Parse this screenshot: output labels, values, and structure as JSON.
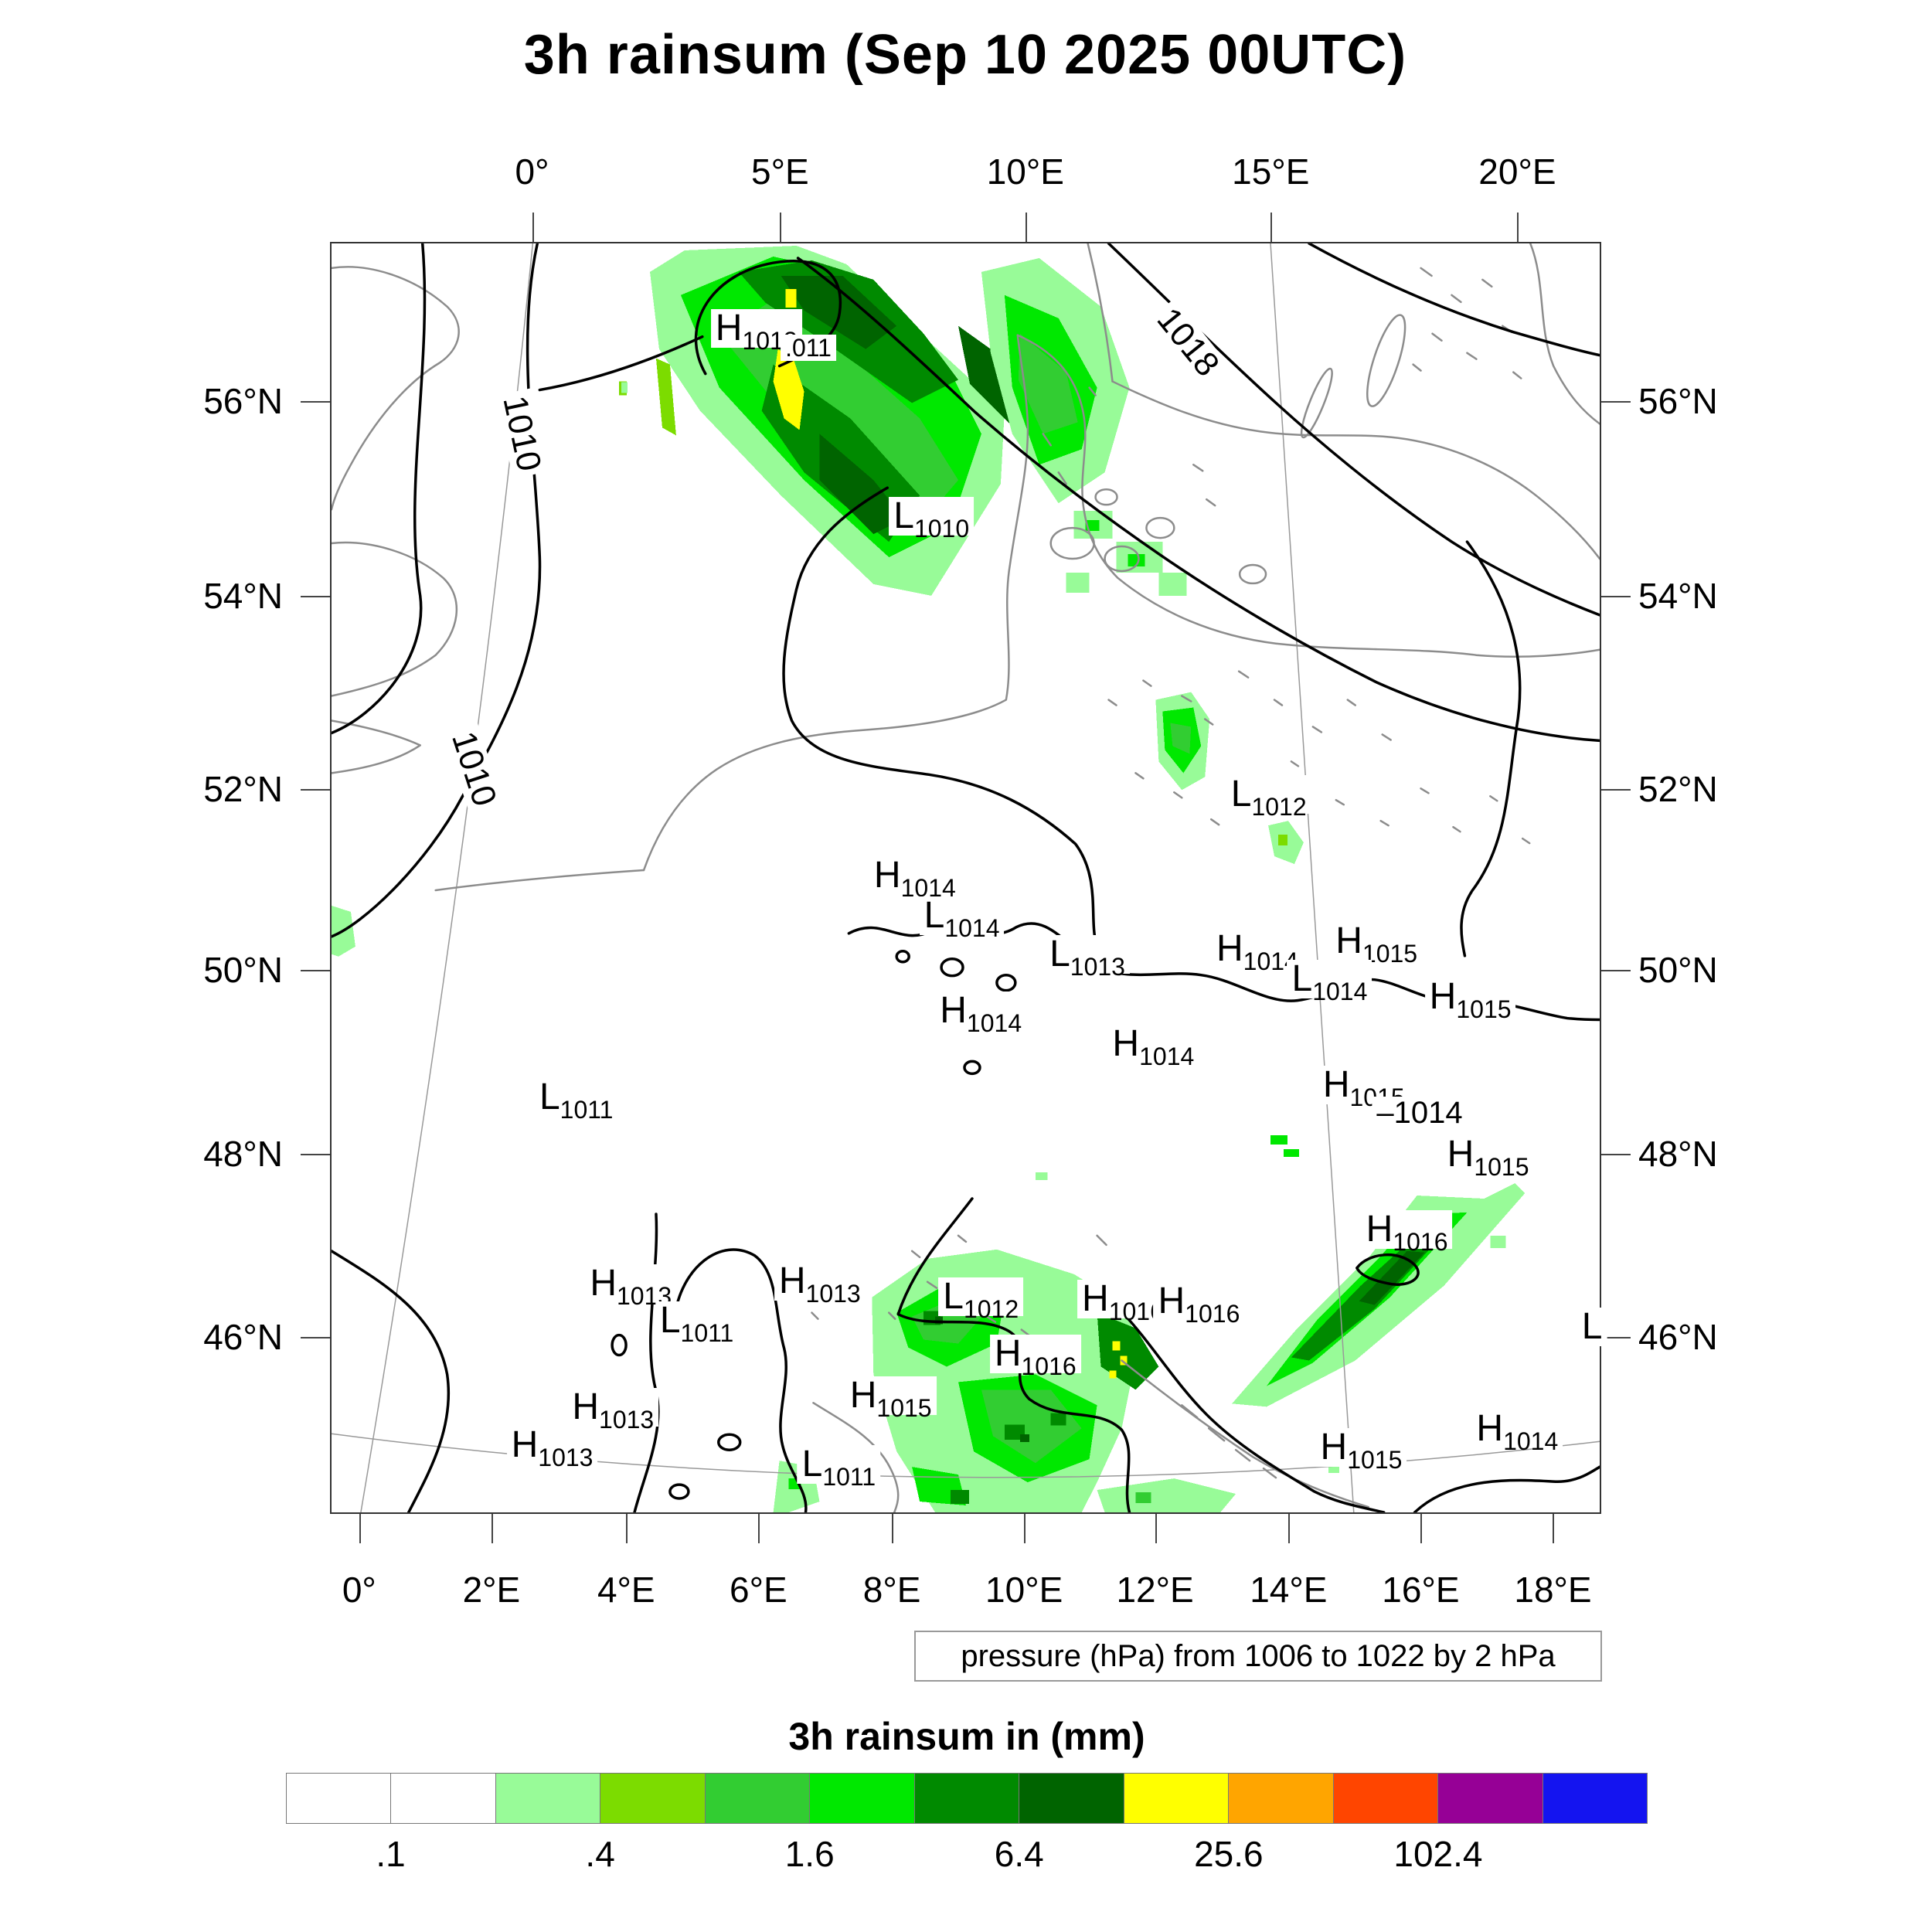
{
  "chart_data": {
    "type": "heatmap",
    "title": "3h rainsum (Sep 10 2025 00UTC)",
    "field": "3h rainsum",
    "units": "mm",
    "valid_time": "Sep 10 2025 00UTC",
    "caption": "pressure (hPa) from 1006 to 1022 by 2 hPa",
    "pressure_contours_hPa": {
      "from": 1006,
      "to": 1022,
      "by": 2
    },
    "colorbar": {
      "title": "3h rainsum in (mm)",
      "scale": "logarithmic (factor 2 per cell boundary)",
      "colors": [
        "#FFFFFF",
        "#FFFFFF",
        "#98FB98",
        "#7CDC00",
        "#32CD32",
        "#00E800",
        "#008A00",
        "#006400",
        "#FFFF00",
        "#FFA500",
        "#FF4500",
        "#960096",
        "#1414F0"
      ],
      "boundary_labels": [
        {
          "text": ".1",
          "boundary": 1
        },
        {
          "text": ".4",
          "boundary": 3
        },
        {
          "text": "1.6",
          "boundary": 5
        },
        {
          "text": "6.4",
          "boundary": 7
        },
        {
          "text": "25.6",
          "boundary": 9
        },
        {
          "text": "102.4",
          "boundary": 11
        }
      ]
    },
    "axes": {
      "top": [
        {
          "label": "0°",
          "pct": 15.9
        },
        {
          "label": "5°E",
          "pct": 35.4
        },
        {
          "label": "10°E",
          "pct": 54.7
        },
        {
          "label": "15°E",
          "pct": 74.0
        },
        {
          "label": "20°E",
          "pct": 93.4
        }
      ],
      "bottom": [
        {
          "label": "0°",
          "pct": 2.3
        },
        {
          "label": "2°E",
          "pct": 12.7
        },
        {
          "label": "4°E",
          "pct": 23.3
        },
        {
          "label": "6°E",
          "pct": 33.7
        },
        {
          "label": "8°E",
          "pct": 44.2
        },
        {
          "label": "10°E",
          "pct": 54.6
        },
        {
          "label": "12°E",
          "pct": 64.9
        },
        {
          "label": "14°E",
          "pct": 75.4
        },
        {
          "label": "16°E",
          "pct": 85.8
        },
        {
          "label": "18°E",
          "pct": 96.2
        }
      ],
      "left": [
        {
          "label": "56°N",
          "pct": 12.5
        },
        {
          "label": "54°N",
          "pct": 27.8
        },
        {
          "label": "52°N",
          "pct": 43.0
        },
        {
          "label": "50°N",
          "pct": 57.2
        },
        {
          "label": "48°N",
          "pct": 71.7
        },
        {
          "label": "46°N",
          "pct": 86.1
        }
      ],
      "right": [
        {
          "label": "56°N",
          "pct": 12.5
        },
        {
          "label": "54°N",
          "pct": 27.8
        },
        {
          "label": "52°N",
          "pct": 43.0
        },
        {
          "label": "50°N",
          "pct": 57.2
        },
        {
          "label": "48°N",
          "pct": 71.7
        },
        {
          "label": "46°N",
          "pct": 86.1
        }
      ]
    },
    "pressure_labels": [
      {
        "k": "H",
        "v": "1013",
        "x": 33.5,
        "y": 6.7
      },
      {
        "k": "T",
        "v": ".011",
        "x": 37.6,
        "y": 8.2,
        "fs": 32
      },
      {
        "k": "L",
        "v": "1010",
        "x": 47.3,
        "y": 21.5
      },
      {
        "k": "T",
        "v": "1018",
        "x": 67.5,
        "y": 7.8,
        "r": 51,
        "fs": 44
      },
      {
        "k": "T",
        "v": "1010",
        "x": 15.0,
        "y": 15.0,
        "r": 78,
        "fs": 44
      },
      {
        "k": "T",
        "v": "1010",
        "x": 11.2,
        "y": 41.4,
        "r": 72,
        "fs": 44
      },
      {
        "k": "L",
        "v": "1012",
        "x": 73.9,
        "y": 43.4
      },
      {
        "k": "H",
        "v": "1014",
        "x": 46.0,
        "y": 49.8
      },
      {
        "k": "L",
        "v": "1014",
        "x": 49.7,
        "y": 53.0
      },
      {
        "k": "L",
        "v": "1013",
        "x": 59.6,
        "y": 56.0
      },
      {
        "k": "H",
        "v": "1014",
        "x": 73.0,
        "y": 55.6
      },
      {
        "k": "H",
        "v": "1015",
        "x": 82.4,
        "y": 55.0
      },
      {
        "k": "L",
        "v": "1014",
        "x": 78.7,
        "y": 58.0
      },
      {
        "k": "H",
        "v": "1015",
        "x": 89.8,
        "y": 59.4
      },
      {
        "k": "H",
        "v": "1014",
        "x": 51.2,
        "y": 60.5
      },
      {
        "k": "H",
        "v": "1014",
        "x": 64.8,
        "y": 63.1
      },
      {
        "k": "L",
        "v": "1011",
        "x": 19.3,
        "y": 67.3
      },
      {
        "k": "H",
        "v": "1015",
        "x": 81.4,
        "y": 66.3
      },
      {
        "k": "T",
        "v": "‒1014",
        "x": 85.8,
        "y": 68.5,
        "fs": 40
      },
      {
        "k": "H",
        "v": "1015",
        "x": 91.2,
        "y": 71.8
      },
      {
        "k": "H",
        "v": "1016",
        "x": 84.8,
        "y": 77.7
      },
      {
        "k": "H",
        "v": "1013",
        "x": 23.6,
        "y": 82.0
      },
      {
        "k": "H",
        "v": "1013",
        "x": 38.5,
        "y": 81.8
      },
      {
        "k": "L",
        "v": "1011",
        "x": 28.8,
        "y": 84.9
      },
      {
        "k": "L",
        "v": "1012",
        "x": 51.2,
        "y": 83.0
      },
      {
        "k": "H",
        "v": "1016",
        "x": 62.4,
        "y": 83.2
      },
      {
        "k": "H",
        "v": "1016",
        "x": 68.4,
        "y": 83.4
      },
      {
        "k": "H",
        "v": "1016",
        "x": 55.5,
        "y": 87.5
      },
      {
        "k": "H",
        "v": "1015",
        "x": 44.1,
        "y": 90.8
      },
      {
        "k": "H",
        "v": "1013",
        "x": 22.2,
        "y": 91.7
      },
      {
        "k": "H",
        "v": "1013",
        "x": 17.4,
        "y": 94.7
      },
      {
        "k": "L",
        "v": "1011",
        "x": 40.0,
        "y": 96.2
      },
      {
        "k": "H",
        "v": "1015",
        "x": 81.2,
        "y": 94.9
      },
      {
        "k": "H",
        "v": "1014",
        "x": 93.5,
        "y": 93.4
      },
      {
        "k": "L",
        "v": "",
        "x": 99.4,
        "y": 85.4
      }
    ],
    "rain_maxima": [
      {
        "area": "North Sea / Denmark band",
        "peak_bin_mm": "25.6–51.2"
      },
      {
        "area": "Alps / Northern Italy",
        "peak_bin_mm": "25.6–51.2"
      },
      {
        "area": "Eastern Alps diagonal streak",
        "peak_bin_mm": "6.4–25.6"
      },
      {
        "area": "NE Germany ~13°E 52.3°N",
        "peak_bin_mm": "1.6–3.2"
      }
    ]
  }
}
